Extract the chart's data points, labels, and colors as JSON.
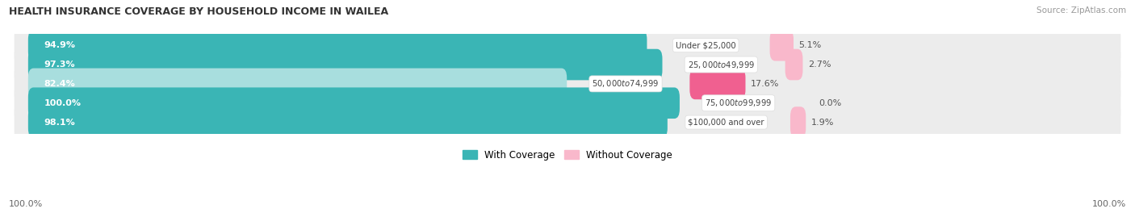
{
  "title": "HEALTH INSURANCE COVERAGE BY HOUSEHOLD INCOME IN WAILEA",
  "source": "Source: ZipAtlas.com",
  "categories": [
    "Under $25,000",
    "$25,000 to $49,999",
    "$50,000 to $74,999",
    "$75,000 to $99,999",
    "$100,000 and over"
  ],
  "with_coverage": [
    94.9,
    97.3,
    82.4,
    100.0,
    98.1
  ],
  "without_coverage": [
    5.1,
    2.7,
    17.6,
    0.0,
    1.9
  ],
  "color_with": "#3ab5b5",
  "color_with_light": "#a8dede",
  "color_without_light": "#f9b8cb",
  "color_without_dark": "#f06090",
  "bg_row_color": "#ececec",
  "legend_with": "With Coverage",
  "legend_without": "Without Coverage",
  "bottom_left_label": "100.0%",
  "bottom_right_label": "100.0%",
  "figsize": [
    14.06,
    2.69
  ],
  "dpi": 100
}
